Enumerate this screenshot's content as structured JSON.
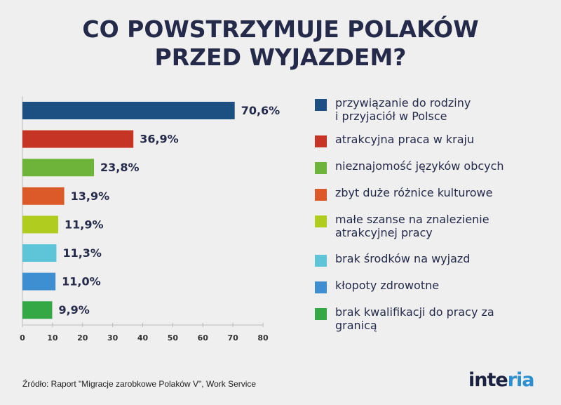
{
  "title_line1": "CO POWSTRZYMUJE POLAKÓW",
  "title_line2": "PRZED WYJAZDEM?",
  "chart_data": {
    "type": "bar",
    "orientation": "horizontal",
    "categories": [
      "przywiązanie do rodziny i przyjaciół w Polsce",
      "atrakcyjna praca w kraju",
      "nieznajomość języków obcych",
      "zbyt duże różnice kulturowe",
      "małe szanse na znalezienie atrakcyjnej pracy",
      "brak środków na wyjazd",
      "kłopoty zdrowotne",
      "brak kwalifikacji do pracy za granicą"
    ],
    "legend_lines": [
      [
        "przywiązanie do rodziny",
        "i przyjaciół w Polsce"
      ],
      [
        "atrakcyjna praca w kraju"
      ],
      [
        "nieznajomość języków obcych"
      ],
      [
        "zbyt duże różnice kulturowe"
      ],
      [
        "małe szanse na znalezienie",
        "atrakcyjnej pracy"
      ],
      [
        "brak środków na wyjazd"
      ],
      [
        "kłopoty zdrowotne"
      ],
      [
        "brak kwalifikacji do pracy za",
        "granicą"
      ]
    ],
    "values": [
      70.6,
      36.9,
      23.8,
      13.9,
      11.9,
      11.3,
      11.0,
      9.9
    ],
    "data_labels": [
      "70,6%",
      "36,9%",
      "23,8%",
      "13,9%",
      "11,9%",
      "11,3%",
      "11,0%",
      "9,9%"
    ],
    "colors": [
      "#1c4f82",
      "#c63425",
      "#6fb43a",
      "#dc5a2a",
      "#b0cc1e",
      "#5ec4d8",
      "#3d8fd2",
      "#35a846"
    ],
    "xlim": [
      0,
      80
    ],
    "xticks": [
      "0",
      "10",
      "20",
      "30",
      "40",
      "50",
      "60",
      "70",
      "80"
    ],
    "legend_position": "right",
    "grid": false
  },
  "source": "Źródło: Raport \"Migracje zarobkowe Polaków V\", Work Service",
  "logo": "interia"
}
